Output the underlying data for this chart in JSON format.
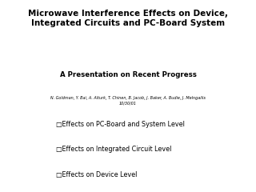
{
  "title_line1": "Microwave Interference Effects on Device,",
  "title_line2": "Integrated Circuits and PC-Board System",
  "subtitle": "A Presentation on Recent Progress",
  "authors_line1": "N. Goldman, Y. Bai, A. Alturk, T. Chinen, B. Jacob, J. Baker, A. Budie, J. Melngailis",
  "authors_line2": "10/30/01",
  "bullet1": "□Effects on PC-Board and System Level",
  "bullet2": "□Effects on Integrated Circuit Level",
  "bullet3": "□Effects on Device Level",
  "bg_color": "#ffffff",
  "text_color": "#000000",
  "title_fontsize": 7.5,
  "subtitle_fontsize": 6.2,
  "authors_fontsize": 3.5,
  "bullet_fontsize": 5.8
}
